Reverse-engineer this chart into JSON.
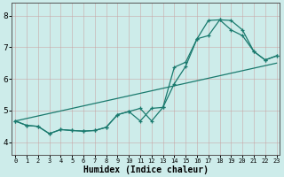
{
  "xlabel": "Humidex (Indice chaleur)",
  "bg_color": "#cdecea",
  "grid_color": "#b8dcd9",
  "line_color": "#1a7a6e",
  "x_ticks": [
    0,
    1,
    2,
    3,
    4,
    5,
    6,
    7,
    8,
    9,
    10,
    11,
    12,
    13,
    14,
    15,
    16,
    17,
    18,
    19,
    20,
    21,
    22,
    23
  ],
  "y_ticks": [
    4,
    5,
    6,
    7,
    8
  ],
  "ylim": [
    3.6,
    8.4
  ],
  "xlim": [
    -0.3,
    23.3
  ],
  "line1_y": [
    4.67,
    4.53,
    4.5,
    4.27,
    4.4,
    4.37,
    4.35,
    4.37,
    4.47,
    4.87,
    4.97,
    5.07,
    4.67,
    5.1,
    5.85,
    6.4,
    7.27,
    7.37,
    7.87,
    7.85,
    7.55,
    6.87,
    6.6,
    6.73
  ],
  "line2_y": [
    4.67,
    4.53,
    4.5,
    4.27,
    4.4,
    4.37,
    4.35,
    4.37,
    4.47,
    4.87,
    4.97,
    4.67,
    5.07,
    5.1,
    6.37,
    6.53,
    7.27,
    7.85,
    7.87,
    7.55,
    7.37,
    6.87,
    6.6,
    6.73
  ],
  "trend_x": [
    0,
    23
  ],
  "trend_y": [
    4.67,
    6.5
  ]
}
